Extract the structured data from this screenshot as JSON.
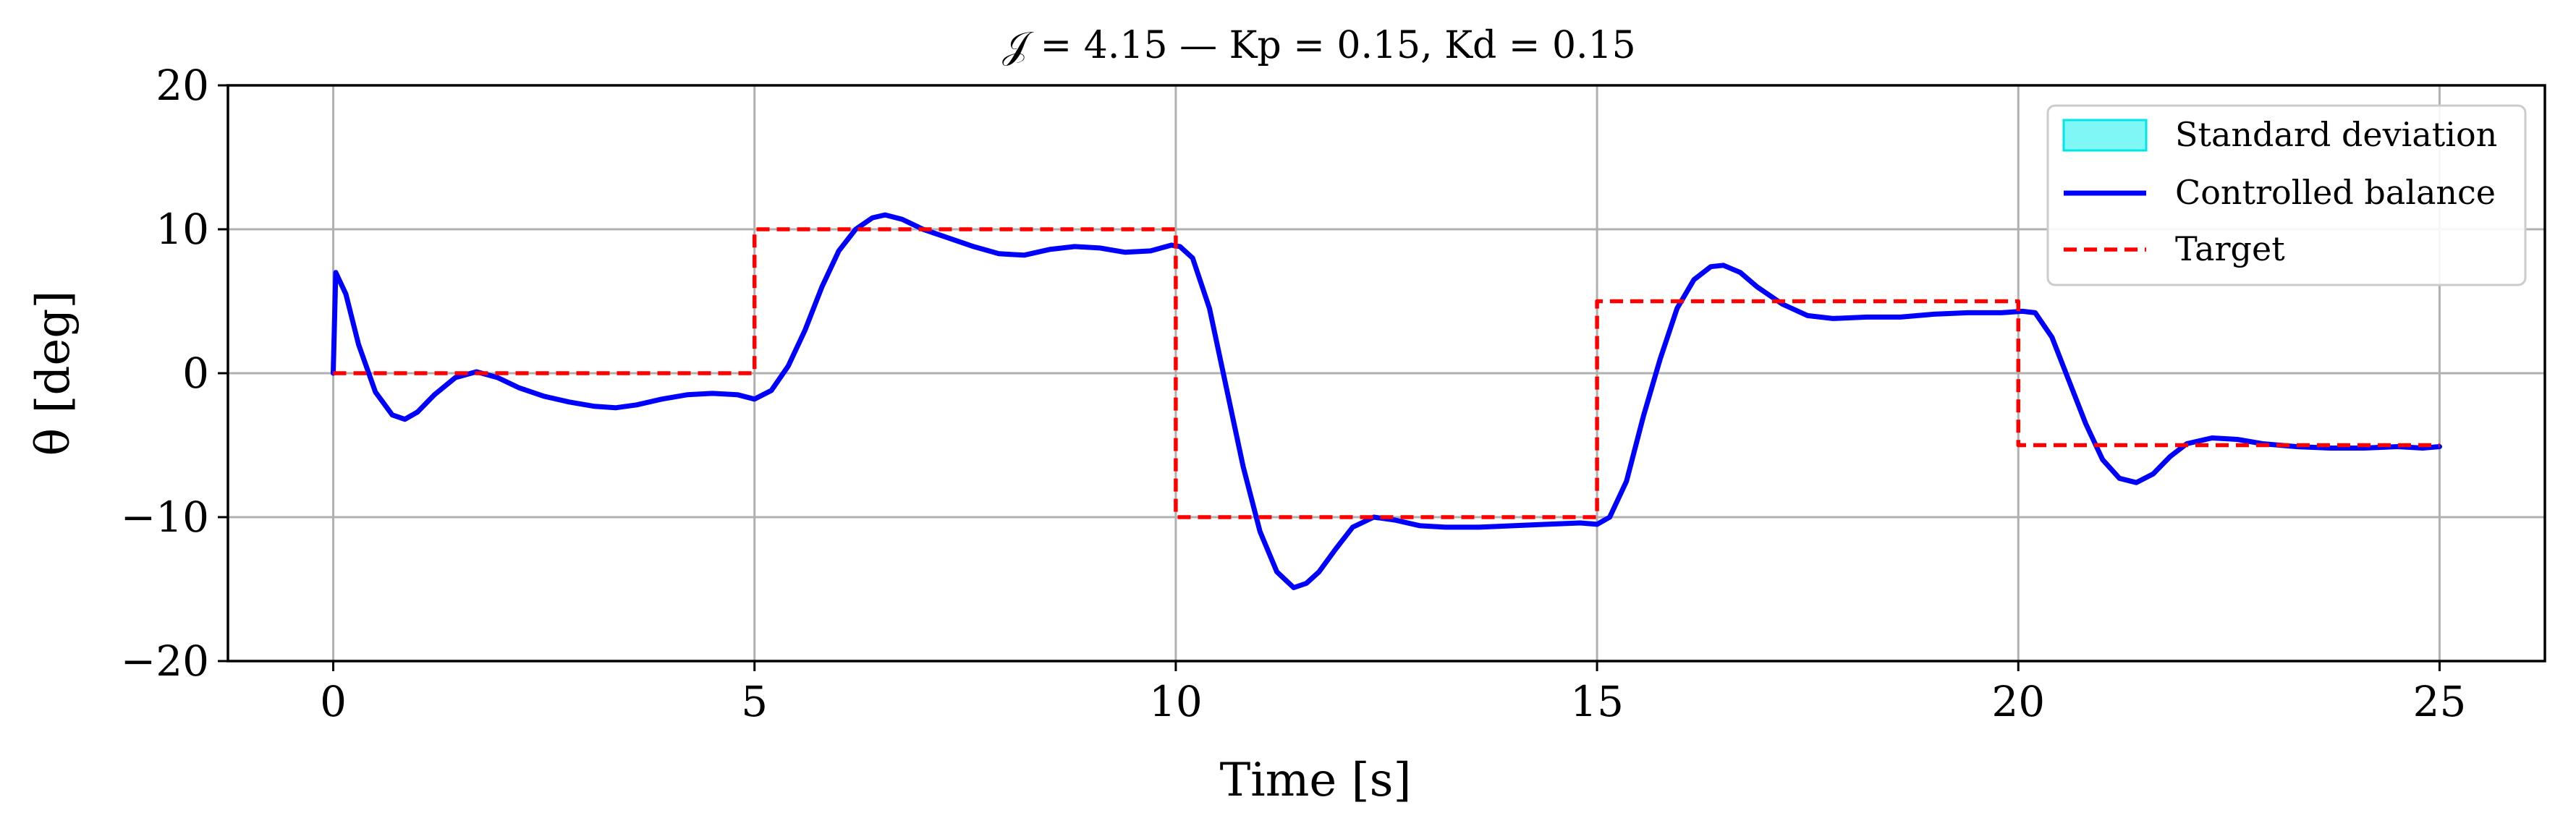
{
  "chart_data": {
    "type": "line",
    "title": "𝒥 = 4.15 — Kp = 0.15, Kd = 0.15",
    "xlabel": "Time [s]",
    "ylabel": "θ [deg]",
    "xlim": [
      -1.25,
      26.25
    ],
    "ylim": [
      -20,
      20
    ],
    "xticks": [
      0,
      5,
      10,
      15,
      20,
      25
    ],
    "yticks": [
      -20,
      -10,
      0,
      10,
      20
    ],
    "xtick_labels": [
      "0",
      "5",
      "10",
      "15",
      "20",
      "25"
    ],
    "ytick_labels": [
      "−20",
      "−10",
      "0",
      "10",
      "20"
    ],
    "grid": true,
    "legend_position": "top-right",
    "legend": [
      {
        "label": "Standard deviation",
        "kind": "patch"
      },
      {
        "label": "Controlled balance",
        "kind": "line"
      },
      {
        "label": "Target",
        "kind": "dashed"
      }
    ],
    "colors": {
      "controlled": "#0000ff",
      "target": "#ff0000",
      "std_fill": "#7ff7f7",
      "std_edge": "#00e5e5"
    },
    "series": [
      {
        "name": "Controlled balance",
        "style": "solid",
        "x": [
          0,
          0.03,
          0.15,
          0.3,
          0.5,
          0.7,
          0.85,
          1.0,
          1.2,
          1.45,
          1.7,
          1.95,
          2.2,
          2.5,
          2.8,
          3.1,
          3.35,
          3.6,
          3.9,
          4.2,
          4.5,
          4.8,
          5.0,
          5.2,
          5.4,
          5.6,
          5.8,
          6.0,
          6.2,
          6.4,
          6.55,
          6.75,
          7.0,
          7.3,
          7.6,
          7.9,
          8.2,
          8.5,
          8.8,
          9.1,
          9.4,
          9.7,
          9.95,
          10.05,
          10.2,
          10.4,
          10.6,
          10.8,
          11.0,
          11.2,
          11.4,
          11.55,
          11.7,
          11.9,
          12.1,
          12.35,
          12.6,
          12.9,
          13.2,
          13.6,
          14.0,
          14.4,
          14.8,
          15.0,
          15.15,
          15.35,
          15.55,
          15.75,
          15.95,
          16.15,
          16.35,
          16.5,
          16.7,
          16.9,
          17.2,
          17.5,
          17.8,
          18.2,
          18.6,
          19.0,
          19.4,
          19.8,
          20.05,
          20.2,
          20.4,
          20.6,
          20.8,
          21.0,
          21.2,
          21.4,
          21.6,
          21.8,
          22.0,
          22.3,
          22.6,
          22.9,
          23.3,
          23.7,
          24.1,
          24.5,
          24.8,
          25.0
        ],
        "y": [
          0,
          7.0,
          5.5,
          2.0,
          -1.3,
          -2.9,
          -3.2,
          -2.7,
          -1.5,
          -0.3,
          0.1,
          -0.3,
          -1.0,
          -1.6,
          -2.0,
          -2.3,
          -2.4,
          -2.2,
          -1.8,
          -1.5,
          -1.4,
          -1.5,
          -1.8,
          -1.2,
          0.5,
          3.0,
          6.0,
          8.5,
          10.0,
          10.8,
          11.0,
          10.7,
          10.0,
          9.4,
          8.8,
          8.3,
          8.2,
          8.6,
          8.8,
          8.7,
          8.4,
          8.5,
          8.9,
          8.8,
          8.0,
          4.5,
          -1.0,
          -6.5,
          -11.0,
          -13.8,
          -14.9,
          -14.6,
          -13.8,
          -12.2,
          -10.7,
          -10.0,
          -10.2,
          -10.6,
          -10.7,
          -10.7,
          -10.6,
          -10.5,
          -10.4,
          -10.5,
          -10.0,
          -7.5,
          -3.0,
          1.0,
          4.5,
          6.5,
          7.4,
          7.5,
          7.0,
          6.0,
          4.8,
          4.0,
          3.8,
          3.9,
          3.9,
          4.1,
          4.2,
          4.2,
          4.3,
          4.2,
          2.5,
          -0.5,
          -3.5,
          -6.0,
          -7.3,
          -7.6,
          -7.0,
          -5.8,
          -4.9,
          -4.5,
          -4.6,
          -4.9,
          -5.1,
          -5.2,
          -5.2,
          -5.1,
          -5.2,
          -5.1
        ]
      },
      {
        "name": "Target",
        "style": "dashed",
        "x": [
          0,
          5,
          5,
          10,
          10,
          15,
          15,
          20,
          20,
          25
        ],
        "y": [
          0,
          0,
          10,
          10,
          -10,
          -10,
          5,
          5,
          -5,
          -5
        ]
      }
    ]
  }
}
